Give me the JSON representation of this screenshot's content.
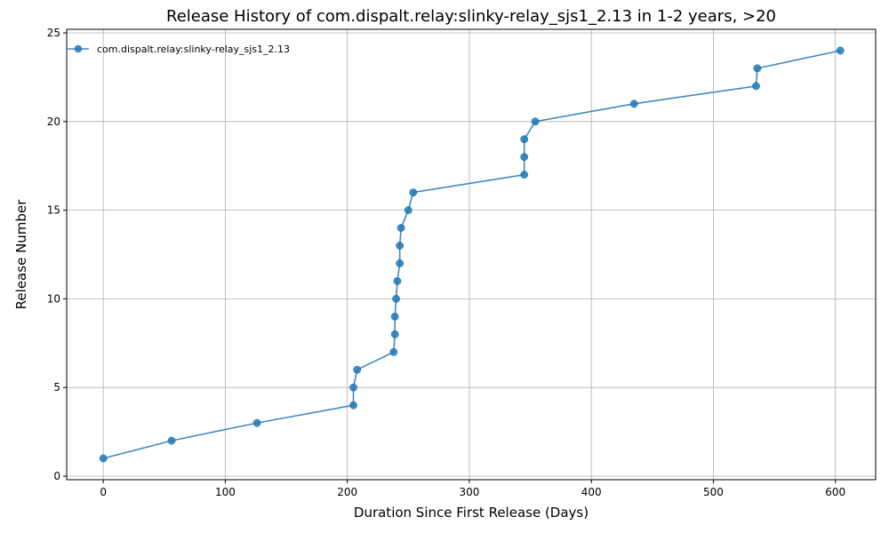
{
  "chart_data": {
    "type": "line",
    "title": "Release History of com.dispalt.relay:slinky-relay_sjs1_2.13 in 1-2 years, >20",
    "xlabel": "Duration Since First Release (Days)",
    "ylabel": "Release Number",
    "xlim": [
      -30,
      633
    ],
    "ylim": [
      -0.2,
      25.2
    ],
    "xticks": [
      0,
      100,
      200,
      300,
      400,
      500,
      600
    ],
    "yticks": [
      0,
      5,
      10,
      15,
      20,
      25
    ],
    "grid": true,
    "legend_position": "top-left",
    "series": [
      {
        "name": "com.dispalt.relay:slinky-relay_sjs1_2.13",
        "color": "#1f77b4",
        "marker": "circle",
        "x": [
          0,
          56,
          126,
          205,
          205,
          208,
          238,
          239,
          239,
          240,
          241,
          243,
          243,
          244,
          250,
          254,
          345,
          345,
          345,
          354,
          435,
          535,
          536,
          604
        ],
        "y": [
          1,
          2,
          3,
          4,
          5,
          6,
          7,
          8,
          9,
          10,
          11,
          12,
          13,
          14,
          15,
          16,
          17,
          18,
          19,
          20,
          21,
          22,
          23,
          24
        ]
      }
    ]
  }
}
